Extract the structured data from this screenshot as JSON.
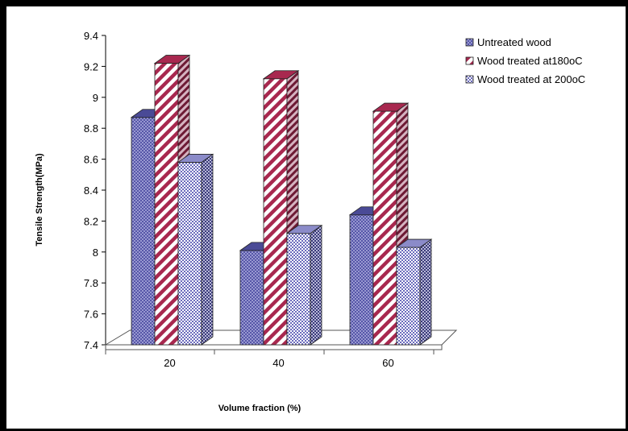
{
  "chart_data": {
    "type": "bar",
    "title": "",
    "xlabel": "Volume fraction (%)",
    "ylabel": "Tensile Strength(MPa)",
    "categories": [
      "20",
      "40",
      "60"
    ],
    "ylim": [
      7.4,
      9.4
    ],
    "yticks": [
      "7.4",
      "7.6",
      "7.8",
      "8",
      "8.2",
      "8.4",
      "8.6",
      "8.8",
      "9",
      "9.2",
      "9.4"
    ],
    "series": [
      {
        "name": "Untreated wood",
        "values": [
          8.87,
          8.01,
          8.24
        ],
        "color": "#5b5bab",
        "pattern": "dots"
      },
      {
        "name": "Wood treated at180oC",
        "values": [
          9.22,
          9.12,
          8.91
        ],
        "color": "#a8284f",
        "pattern": "diagonal-stripes"
      },
      {
        "name": "Wood treated at 200oC",
        "values": [
          8.58,
          8.12,
          8.03
        ],
        "color": "#6b6bbd",
        "pattern": "checker"
      }
    ],
    "legend_position": "top-right",
    "grid": false,
    "style": "3d-column"
  }
}
